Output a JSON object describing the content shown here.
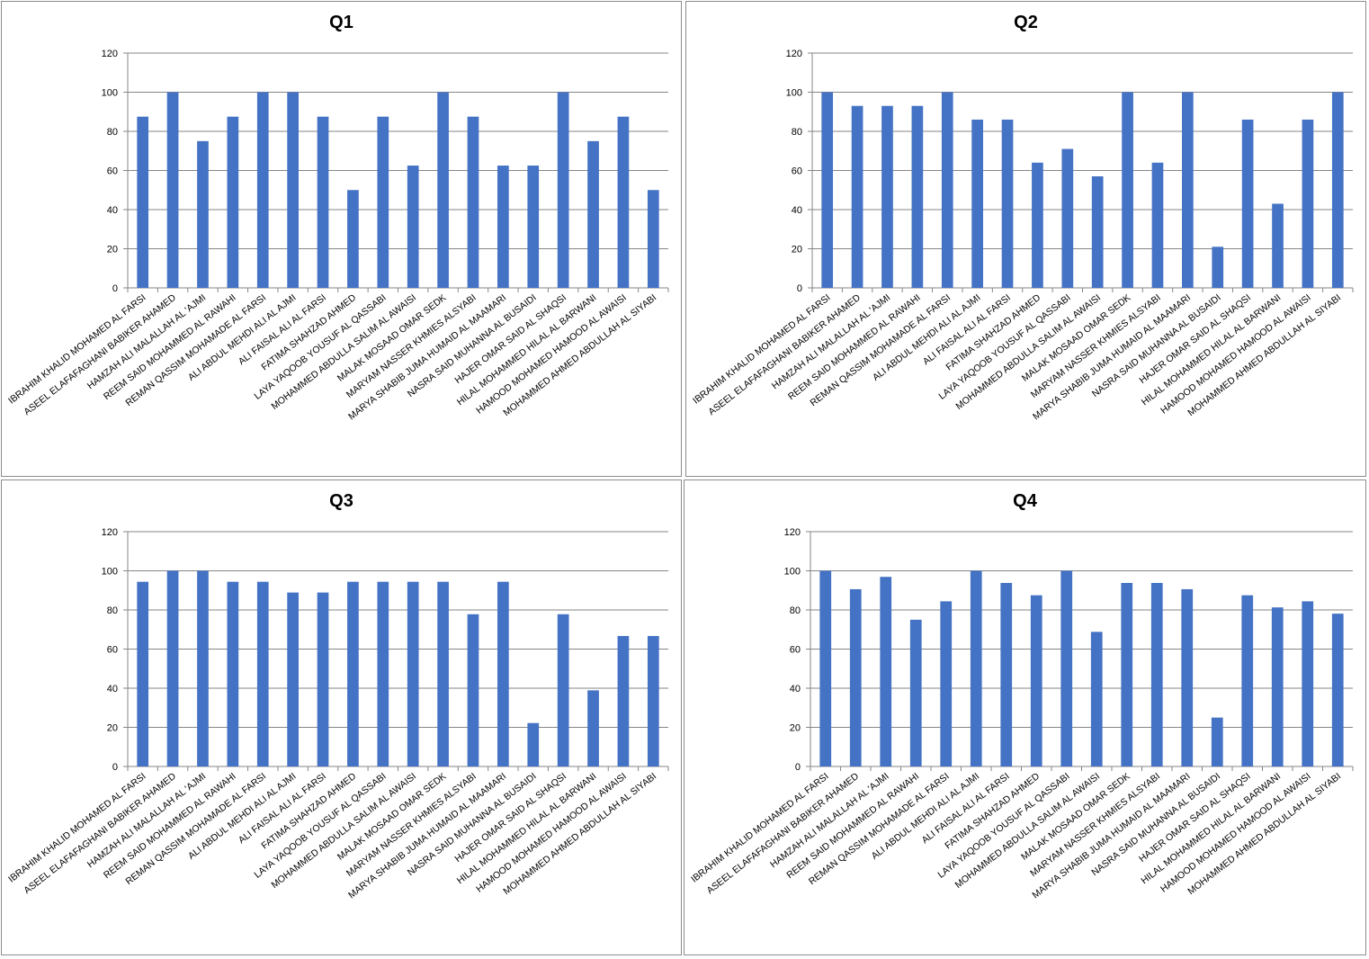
{
  "chart_data": [
    {
      "type": "bar",
      "title": "Q1",
      "categories": [
        "IBRAHIM KHALID MOHAMED AL FARSI",
        "ASEEL ELAFAFAGHANI BABIKER AHAMED",
        "HAMZAH ALI MALALLAH AL 'AJMI",
        "REEM SAID MOHAMMED AL RAWAHI",
        "REMAN QASSIM MOHAMADE AL FARSI",
        "ALI ABDUL MEHDI ALI AL AJMI",
        "ALI FAISAL ALI AL FARSI",
        "FATIMA SHAHZAD AHMED",
        "LAYA YAQOOB YOUSUF AL QASSABI",
        "MOHAMMED ABDULLA SALIM AL AWAISI",
        "MALAK MOSAAD OMAR SEDK",
        "MARYAM NASSER KHMIES ALSYABI",
        "MARYA SHABIB JUMA HUMAID AL MAAMARI",
        "NASRA SAID MUHANNA AL BUSAIDI",
        "HAJER OMAR SAID AL SHAQSI",
        "HILAL MOHAMMED HILAL AL BARWANI",
        "HAMOOD MOHAMED HAMOOD AL AWAISI",
        "MOHAMMED AHMED ABDULLAH AL SIYABI"
      ],
      "values": [
        87.5,
        100,
        75,
        87.5,
        100,
        100,
        87.5,
        50,
        87.5,
        62.5,
        100,
        87.5,
        62.5,
        62.5,
        100,
        75,
        87.5,
        50
      ],
      "ylim": [
        0,
        120
      ],
      "yticks": [
        0,
        20,
        40,
        60,
        80,
        100,
        120
      ],
      "grid": true,
      "color": "#4472C4"
    },
    {
      "type": "bar",
      "title": "Q2",
      "categories": [
        "IBRAHIM KHALID MOHAMED AL FARSI",
        "ASEEL ELAFAFAGHANI BABIKER AHAMED",
        "HAMZAH ALI MALALLAH AL 'AJMI",
        "REEM SAID MOHAMMED AL RAWAHI",
        "REMAN QASSIM MOHAMADE AL FARSI",
        "ALI ABDUL MEHDI ALI AL AJMI",
        "ALI FAISAL ALI AL FARSI",
        "FATIMA SHAHZAD AHMED",
        "LAYA YAQOOB YOUSUF AL QASSABI",
        "MOHAMMED ABDULLA SALIM AL AWAISI",
        "MALAK MOSAAD OMAR SEDK",
        "MARYAM NASSER KHMIES ALSYABI",
        "MARYA SHABIB JUMA HUMAID AL MAAMARI",
        "NASRA SAID MUHANNA AL BUSAIDI",
        "HAJER OMAR SAID AL SHAQSI",
        "HILAL MOHAMMED HILAL AL BARWANI",
        "HAMOOD MOHAMED HAMOOD AL AWAISI",
        "MOHAMMED AHMED ABDULLAH AL SIYABI"
      ],
      "values": [
        100,
        93,
        93,
        93,
        100,
        86,
        86,
        64,
        71,
        57,
        100,
        64,
        100,
        21,
        86,
        43,
        86,
        100
      ],
      "ylim": [
        0,
        120
      ],
      "yticks": [
        0,
        20,
        40,
        60,
        80,
        100,
        120
      ],
      "grid": true,
      "color": "#4472C4"
    },
    {
      "type": "bar",
      "title": "Q3",
      "categories": [
        "IBRAHIM KHALID MOHAMED AL FARSI",
        "ASEEL ELAFAFAGHANI BABIKER AHAMED",
        "HAMZAH ALI MALALLAH AL 'AJMI",
        "REEM SAID MOHAMMED AL RAWAHI",
        "REMAN QASSIM MOHAMADE AL FARSI",
        "ALI ABDUL MEHDI ALI AL AJMI",
        "ALI FAISAL ALI AL FARSI",
        "FATIMA SHAHZAD AHMED",
        "LAYA YAQOOB YOUSUF AL QASSABI",
        "MOHAMMED ABDULLA SALIM AL AWAISI",
        "MALAK MOSAAD OMAR SEDK",
        "MARYAM NASSER KHMIES ALSYABI",
        "MARYA SHABIB JUMA HUMAID AL MAAMARI",
        "NASRA SAID MUHANNA AL BUSAIDI",
        "HAJER OMAR SAID AL SHAQSI",
        "HILAL MOHAMMED HILAL AL BARWANI",
        "HAMOOD MOHAMED HAMOOD AL AWAISI",
        "MOHAMMED AHMED ABDULLAH AL SIYABI"
      ],
      "values": [
        94.4,
        100,
        100,
        94.4,
        94.4,
        88.9,
        88.9,
        94.4,
        94.4,
        94.4,
        94.4,
        77.8,
        94.4,
        22.2,
        77.8,
        38.9,
        66.7,
        66.7
      ],
      "ylim": [
        0,
        120
      ],
      "yticks": [
        0,
        20,
        40,
        60,
        80,
        100,
        120
      ],
      "grid": true,
      "color": "#4472C4"
    },
    {
      "type": "bar",
      "title": "Q4",
      "categories": [
        "IBRAHIM KHALID MOHAMED AL FARSI",
        "ASEEL ELAFAFAGHANI BABIKER AHAMED",
        "HAMZAH ALI MALALLAH AL 'AJMI",
        "REEM SAID MOHAMMED AL RAWAHI",
        "REMAN QASSIM MOHAMADE AL FARSI",
        "ALI ABDUL MEHDI ALI AL AJMI",
        "ALI FAISAL ALI AL FARSI",
        "FATIMA SHAHZAD AHMED",
        "LAYA YAQOOB YOUSUF AL QASSABI",
        "MOHAMMED ABDULLA SALIM AL AWAISI",
        "MALAK MOSAAD OMAR SEDK",
        "MARYAM NASSER KHMIES ALSYABI",
        "MARYA SHABIB JUMA HUMAID AL MAAMARI",
        "NASRA SAID MUHANNA AL BUSAIDI",
        "HAJER OMAR SAID AL SHAQSI",
        "HILAL MOHAMMED HILAL AL BARWANI",
        "HAMOOD MOHAMED HAMOOD AL AWAISI",
        "MOHAMMED AHMED ABDULLAH AL SIYABI"
      ],
      "values": [
        100,
        90.6,
        96.9,
        75,
        84.4,
        100,
        93.8,
        87.5,
        100,
        68.8,
        93.8,
        93.8,
        90.6,
        25,
        87.5,
        81.3,
        84.4,
        78.1
      ],
      "ylim": [
        0,
        120
      ],
      "yticks": [
        0,
        20,
        40,
        60,
        80,
        100,
        120
      ],
      "grid": true,
      "color": "#4472C4"
    }
  ]
}
